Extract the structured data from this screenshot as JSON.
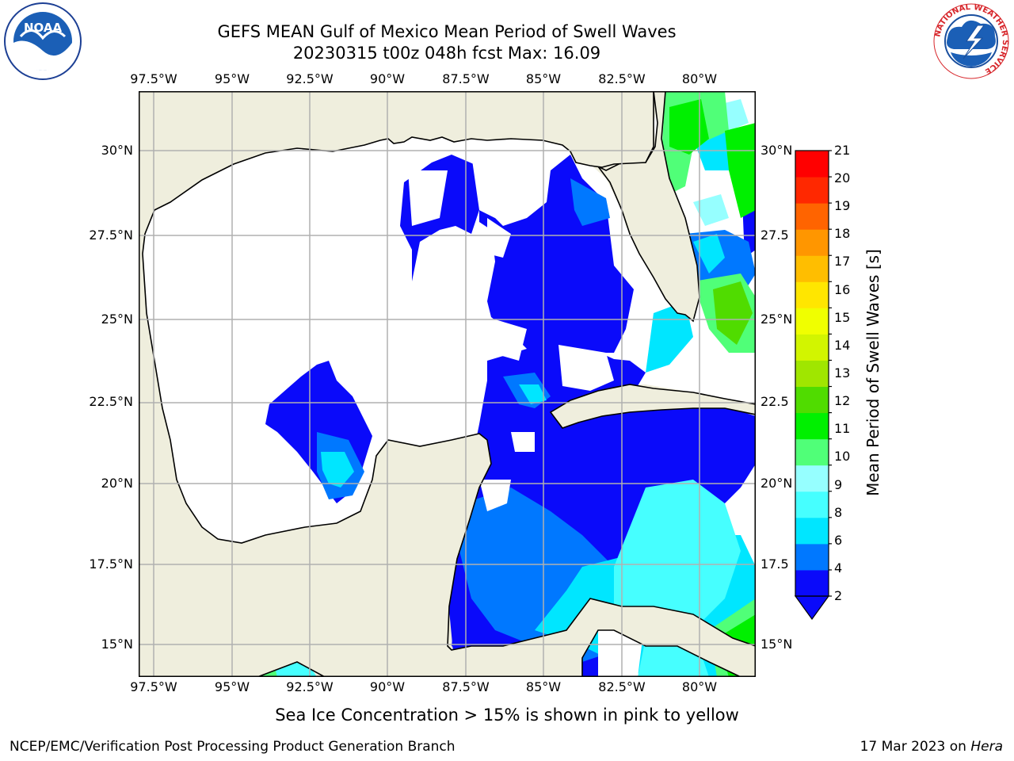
{
  "title": {
    "line1": "GEFS MEAN Gulf of Mexico Mean Period of Swell Waves",
    "line2": "20230315 t00z 048h fcst   Max: 16.09"
  },
  "logos": {
    "left": {
      "name": "noaa-logo",
      "text": "NOAA",
      "ring_text": "NATIONAL OCEANIC AND ATMOSPHERIC ADMINISTRATION · U.S. DEPARTMENT OF COMMERCE"
    },
    "right": {
      "name": "nws-logo",
      "ring_text": "NATIONAL WEATHER SERVICE"
    }
  },
  "map": {
    "lon_labels": [
      "97.5°W",
      "95°W",
      "92.5°W",
      "90°W",
      "87.5°W",
      "85°W",
      "82.5°W",
      "80°W"
    ],
    "lat_labels_left": [
      "30°N",
      "27.5°N",
      "25°N",
      "22.5°N",
      "20°N",
      "17.5°N",
      "15°N"
    ],
    "lat_labels_right": [
      "30°N",
      "27.5",
      "25°N",
      "22.5",
      "20°N",
      "17.5",
      "15°N"
    ],
    "lon_range": [
      -98,
      -78.25
    ],
    "lat_range": [
      14,
      31.6
    ],
    "gridlines": true,
    "land_color": "#efeedd",
    "ocean_no_swell_color": "#ffffff"
  },
  "colorbar": {
    "label": "Mean Period of Swell Waves [s]",
    "ticks": [
      "21",
      "20",
      "19",
      "18",
      "17",
      "16",
      "15",
      "14",
      "13",
      "12",
      "11",
      "10",
      "9",
      "8",
      "6",
      "4",
      "2"
    ],
    "levels": [
      2,
      4,
      6,
      8,
      9,
      10,
      11,
      12,
      13,
      14,
      15,
      16,
      17,
      18,
      19,
      20,
      21
    ],
    "colors": [
      "#0a0afa",
      "#0078ff",
      "#00e6ff",
      "#46ffff",
      "#96ffff",
      "#50ff78",
      "#00f000",
      "#50dc00",
      "#a0e600",
      "#d2f500",
      "#f0ff00",
      "#ffe600",
      "#ffbe00",
      "#ff9600",
      "#ff6400",
      "#ff2800",
      "#ff0000"
    ],
    "extend": "min"
  },
  "footer": {
    "note": "Sea Ice Concentration > 15% is shown in pink to yellow",
    "org": "NCEP/EMC/Verification Post Processing Product Generation Branch",
    "date": "17 Mar 2023 on ",
    "machine": "Hera"
  }
}
